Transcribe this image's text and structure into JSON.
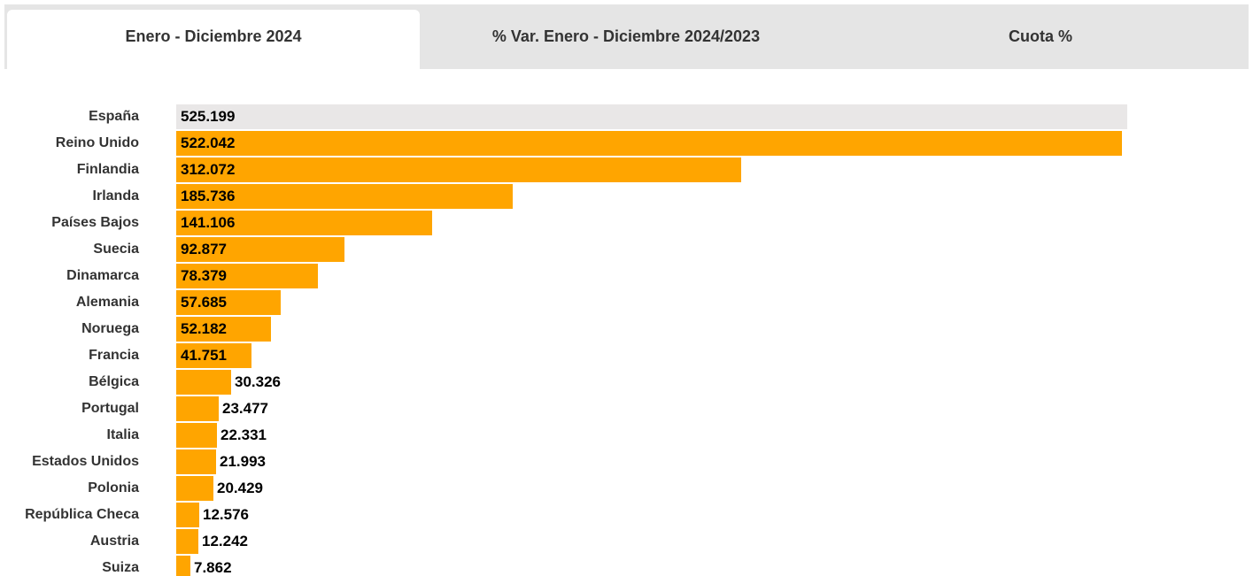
{
  "tabs": [
    {
      "label": "Enero - Diciembre 2024",
      "active": true
    },
    {
      "label": "% Var. Enero - Diciembre 2024/2023",
      "active": false
    },
    {
      "label": "Cuota %",
      "active": false
    }
  ],
  "colors": {
    "bar": "#FFA500",
    "highlight_bar": "#E9E7E7",
    "tab_bg": "#E5E5E5",
    "tab_active_bg": "#FFFFFF",
    "label_text": "#333333",
    "value_text": "#000000"
  },
  "chart_data": {
    "type": "bar",
    "orientation": "horizontal",
    "title": "",
    "xlabel": "",
    "ylabel": "",
    "xlim": [
      0,
      525199
    ],
    "grid": false,
    "legend": "none",
    "categories": [
      "España",
      "Reino Unido",
      "Finlandia",
      "Irlanda",
      "Países Bajos",
      "Suecia",
      "Dinamarca",
      "Alemania",
      "Noruega",
      "Francia",
      "Bélgica",
      "Portugal",
      "Italia",
      "Estados Unidos",
      "Polonia",
      "República Checa",
      "Austria",
      "Suiza"
    ],
    "values": [
      525199,
      522042,
      312072,
      185736,
      141106,
      92877,
      78379,
      57685,
      52182,
      41751,
      30326,
      23477,
      22331,
      21993,
      20429,
      12576,
      12242,
      7862
    ],
    "labels": [
      "525.199",
      "522.042",
      "312.072",
      "185.736",
      "141.106",
      "92.877",
      "78.379",
      "57.685",
      "52.182",
      "41.751",
      "30.326",
      "23.477",
      "22.331",
      "21.993",
      "20.429",
      "12.576",
      "12.242",
      "7.862"
    ],
    "highlighted_category": "España"
  }
}
